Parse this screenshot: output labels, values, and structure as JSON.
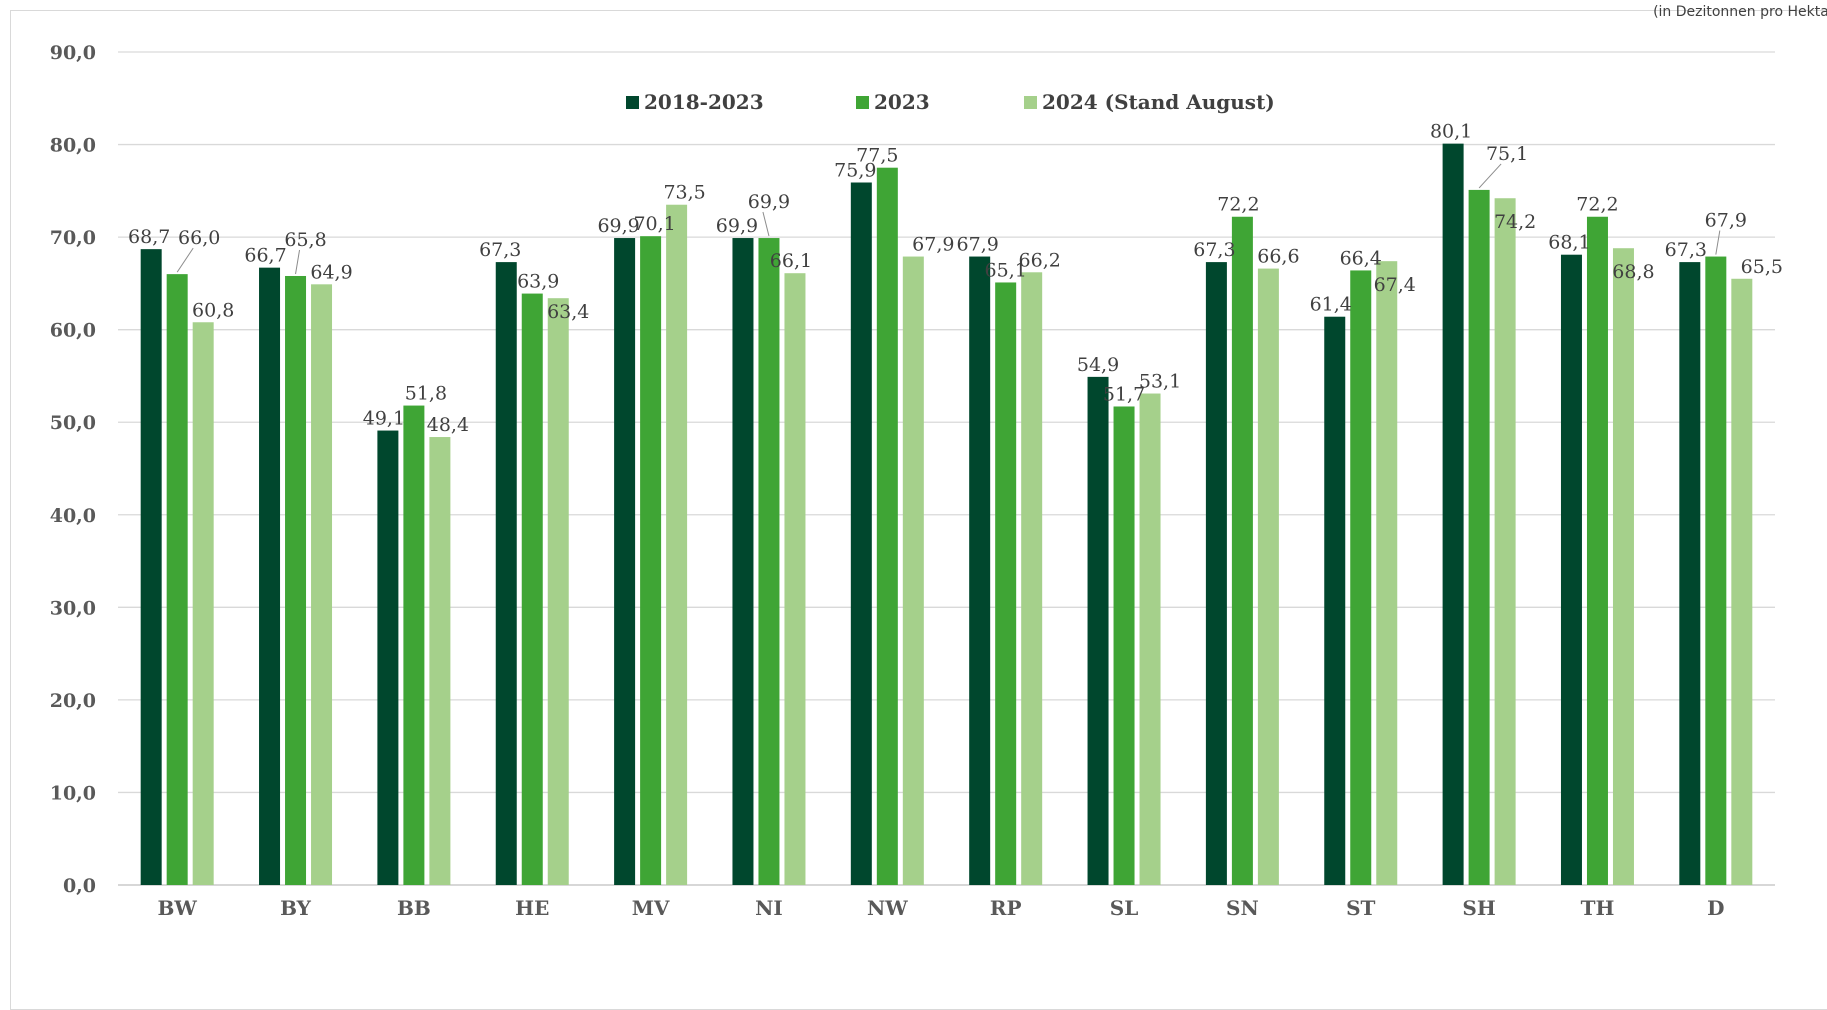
{
  "unit_note": "(in Dezitonnen pro Hektar)",
  "chart_data": {
    "type": "bar",
    "categories": [
      "BW",
      "BY",
      "BB",
      "HE",
      "MV",
      "NI",
      "NW",
      "RP",
      "SL",
      "SN",
      "ST",
      "SH",
      "TH",
      "D"
    ],
    "series": [
      {
        "name": "2018-2023",
        "color": "#00472d",
        "values": [
          68.7,
          66.7,
          49.1,
          67.3,
          69.9,
          69.9,
          75.9,
          67.9,
          54.9,
          67.3,
          61.4,
          80.1,
          68.1,
          67.3
        ]
      },
      {
        "name": "2023",
        "color": "#3fa535",
        "values": [
          66.0,
          65.8,
          51.8,
          63.9,
          70.1,
          69.9,
          77.5,
          65.1,
          51.7,
          72.2,
          66.4,
          75.1,
          72.2,
          67.9
        ]
      },
      {
        "name": "2024 (Stand August)",
        "color": "#a5d08b",
        "values": [
          60.8,
          64.9,
          48.4,
          63.4,
          73.5,
          66.1,
          67.9,
          66.2,
          53.1,
          66.6,
          67.4,
          74.2,
          68.8,
          65.5
        ]
      }
    ],
    "ylim": [
      0,
      90
    ],
    "yticks": [
      "0,0",
      "10,0",
      "20,0",
      "30,0",
      "40,0",
      "50,0",
      "60,0",
      "70,0",
      "80,0",
      "90,0"
    ],
    "data_labels": [
      [
        "68,7",
        "66,7",
        "49,1",
        "67,3",
        "69,9",
        "69,9",
        "75,9",
        "67,9",
        "54,9",
        "67,3",
        "61,4",
        "80,1",
        "68,1",
        "67,3"
      ],
      [
        "66,0",
        "65,8",
        "51,8",
        "63,9",
        "70,1",
        "69,9",
        "77,5",
        "65,1",
        "51,7",
        "72,2",
        "66,4",
        "75,1",
        "72,2",
        "67,9"
      ],
      [
        "60,8",
        "64,9",
        "48,4",
        "63,4",
        "73,5",
        "66,1",
        "67,9",
        "66,2",
        "53,1",
        "66,6",
        "67,4",
        "74,2",
        "68,8",
        "65,5"
      ]
    ],
    "grid": true,
    "legend_position": "top-center",
    "title": "",
    "xlabel": "",
    "ylabel": ""
  }
}
